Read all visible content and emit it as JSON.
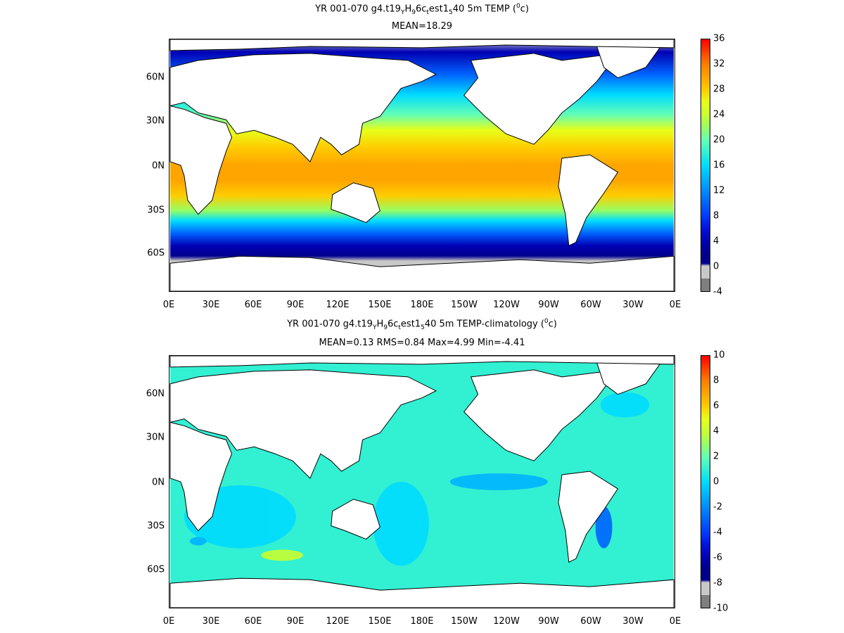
{
  "panels": [
    {
      "title_parts": [
        "YR 001-070 g4.t19",
        "Y",
        "H",
        "9",
        "6c",
        "t",
        "est1",
        "5",
        "40 5m TEMP (",
        "0",
        "c)"
      ],
      "subtitle": "MEAN=18.29",
      "colorbar_ticks": [
        "36",
        "32",
        "28",
        "24",
        "20",
        "16",
        "12",
        "8",
        "4",
        "0",
        "-4"
      ],
      "colors": [
        "#ff0000",
        "#ff4000",
        "#ff7f00",
        "#ffa500",
        "#ffcc00",
        "#e6ff1a",
        "#c8ff32",
        "#96ff64",
        "#64ffb4",
        "#32f0d2",
        "#00dcff",
        "#00b4ff",
        "#008cff",
        "#0064ff",
        "#003cff",
        "#0014dc",
        "#0000b4",
        "#00008c",
        "#c8c8c8",
        "#7f7f7f"
      ]
    },
    {
      "title_parts": [
        "YR 001-070 g4.t19",
        "Y",
        "H",
        "9",
        "6c",
        "t",
        "est1",
        "5",
        "40 5m TEMP-climatology (",
        "0",
        "c)"
      ],
      "subtitle": "MEAN=0.13   RMS=0.84   Max=4.99   Min=-4.41",
      "colorbar_ticks": [
        "10",
        "8",
        "6",
        "4",
        "2",
        "0",
        "-2",
        "-4",
        "-6",
        "-8",
        "-10"
      ],
      "colors": [
        "#ff0000",
        "#ff4000",
        "#ff7f00",
        "#ffa500",
        "#ffcc00",
        "#e6ff1a",
        "#c8ff32",
        "#96ff64",
        "#64ffb4",
        "#32f0d2",
        "#00dcff",
        "#00b4ff",
        "#008cff",
        "#0064ff",
        "#003cff",
        "#0014dc",
        "#0000b4",
        "#00008c",
        "#c8c8c8",
        "#7f7f7f"
      ]
    }
  ],
  "lat_labels": [
    "60N",
    "30N",
    "0N",
    "30S",
    "60S"
  ],
  "lon_labels": [
    "0E",
    "30E",
    "60E",
    "90E",
    "120E",
    "150E",
    "180E",
    "150W",
    "120W",
    "90W",
    "60W",
    "30W",
    "0E"
  ]
}
